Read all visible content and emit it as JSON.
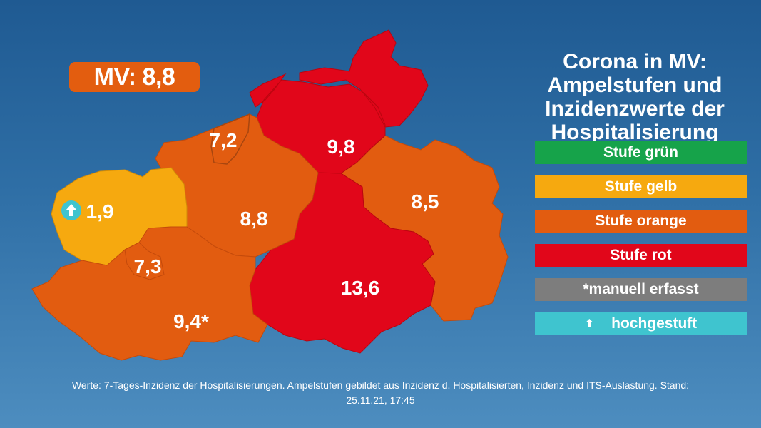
{
  "title": {
    "line1": "Corona in MV:",
    "line2": "Ampelstufen und",
    "line3": "Inzidenzwerte der",
    "line4": "Hospitalisierung"
  },
  "total": "MV: 8,8",
  "districts": [
    {
      "value": "9,8",
      "level": "rot"
    },
    {
      "value": "7,2",
      "level": "orange"
    },
    {
      "value": "8,8",
      "level": "orange"
    },
    {
      "value": "8,5",
      "level": "orange"
    },
    {
      "value": "1,9",
      "level": "gelb",
      "upgraded": true
    },
    {
      "value": "7,3",
      "level": "orange"
    },
    {
      "value": "9,4*",
      "level": "orange"
    },
    {
      "value": "13,6",
      "level": "rot"
    }
  ],
  "legend": [
    {
      "label": "Stufe grün",
      "color": "#16a34a"
    },
    {
      "label": "Stufe gelb",
      "color": "#f6a90f"
    },
    {
      "label": "Stufe orange",
      "color": "#e25c10"
    },
    {
      "label": "Stufe rot",
      "color": "#e1061a"
    },
    {
      "label": "*manuell erfasst",
      "color": "#7d7d7d"
    },
    {
      "label": "hochgestuft",
      "color": "#3fc4cf",
      "icon": "up-arrow-icon"
    }
  ],
  "colors": {
    "rot": "#e1061a",
    "orange": "#e25c10",
    "gelb": "#f6a90f",
    "hochgestuft": "#3fc4cf"
  },
  "footer": {
    "line1": "Werte: 7-Tages-Inzidenz der Hospitalisierungen. Ampelstufen gebildet aus Inzidenz d. Hospitalisierten, Inzidenz und ITS-Auslastung. Stand:",
    "line2": "25.11.21, 17:45"
  }
}
